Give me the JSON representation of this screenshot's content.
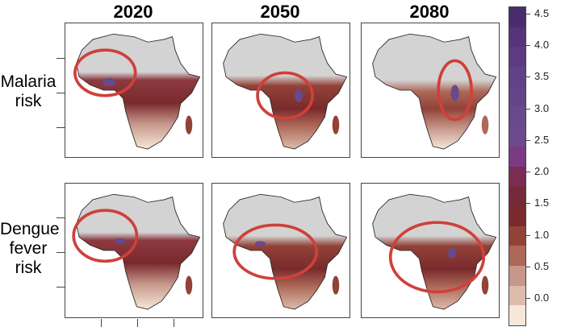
{
  "columns": [
    "2020",
    "2050",
    "2080"
  ],
  "rows": [
    {
      "label_lines": [
        "Malaria",
        "risk"
      ]
    },
    {
      "label_lines": [
        "Dengue",
        "fever",
        "risk"
      ]
    }
  ],
  "colorbar": {
    "ticks": [
      "4.5",
      "4.0",
      "3.5",
      "3.0",
      "2.5",
      "2.0",
      "1.5",
      "1.0",
      "0.5",
      "0.0"
    ],
    "range": [
      0,
      4.5
    ],
    "colors": [
      "#4a2c6e",
      "#57337a",
      "#5d3b82",
      "#604287",
      "#634689",
      "#664a8b",
      "#6e4a8c",
      "#7c3a82",
      "#7c2b55",
      "#742a3a",
      "#7a2a2c",
      "#924238",
      "#ad6858",
      "#c6978a",
      "#ddbcaa",
      "#f6e8d8"
    ]
  },
  "colors": {
    "circle": "#d0403a",
    "no_data": "#d3d3d3"
  }
}
